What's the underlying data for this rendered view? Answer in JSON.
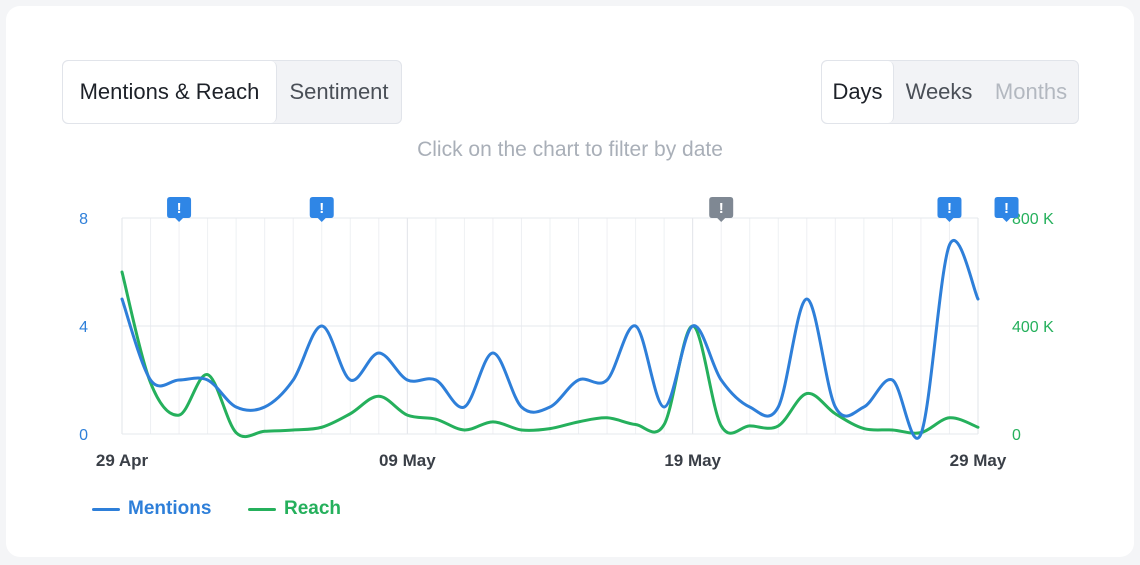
{
  "tabs": {
    "metric": [
      {
        "label": "Mentions & Reach",
        "active": true
      },
      {
        "label": "Sentiment",
        "active": false
      }
    ],
    "period": [
      {
        "label": "Days",
        "active": true
      },
      {
        "label": "Weeks",
        "active": false
      },
      {
        "label": "Months",
        "active": false,
        "disabled": true
      }
    ]
  },
  "hint": "Click on the chart to filter by date",
  "colors": {
    "mentions": "#2e7fd9",
    "reach": "#25b05c",
    "alert_blue": "#2f86e6",
    "alert_gray": "#7f8893"
  },
  "chart_data": {
    "type": "line",
    "x": [
      "2023-04-29",
      "2023-04-30",
      "2023-05-01",
      "2023-05-02",
      "2023-05-03",
      "2023-05-04",
      "2023-05-05",
      "2023-05-06",
      "2023-05-07",
      "2023-05-08",
      "2023-05-09",
      "2023-05-10",
      "2023-05-11",
      "2023-05-12",
      "2023-05-13",
      "2023-05-14",
      "2023-05-15",
      "2023-05-16",
      "2023-05-17",
      "2023-05-18",
      "2023-05-19",
      "2023-05-20",
      "2023-05-21",
      "2023-05-22",
      "2023-05-23",
      "2023-05-24",
      "2023-05-25",
      "2023-05-26",
      "2023-05-27",
      "2023-05-28",
      "2023-05-29"
    ],
    "x_tick_labels": [
      "29 Apr",
      "09 May",
      "19 May",
      "29 May"
    ],
    "series": [
      {
        "name": "Mentions",
        "axis": "left",
        "values": [
          5,
          2,
          2,
          2,
          1,
          1,
          2,
          4,
          2,
          3,
          2,
          2,
          1,
          3,
          1,
          1,
          2,
          2,
          4,
          1,
          4,
          2,
          1,
          1,
          5,
          1,
          1,
          2,
          0,
          7,
          5
        ]
      },
      {
        "name": "Reach",
        "axis": "right",
        "values": [
          600000,
          190000,
          70000,
          220000,
          5000,
          10000,
          15000,
          25000,
          75000,
          140000,
          70000,
          55000,
          15000,
          45000,
          15000,
          20000,
          45000,
          60000,
          35000,
          35000,
          400000,
          30000,
          30000,
          30000,
          150000,
          75000,
          20000,
          15000,
          5000,
          60000,
          25000
        ]
      }
    ],
    "y_left": {
      "ticks": [
        "0",
        "4",
        "8"
      ],
      "range": [
        0,
        8
      ]
    },
    "y_right": {
      "ticks": [
        "0",
        "400 K",
        "800 K"
      ],
      "range": [
        0,
        800000
      ]
    },
    "alert_markers": [
      {
        "date": "2023-05-01",
        "style": "blue",
        "symbol": "!"
      },
      {
        "date": "2023-05-06",
        "style": "blue",
        "symbol": "!"
      },
      {
        "date": "2023-05-20",
        "style": "gray",
        "symbol": "!"
      },
      {
        "date": "2023-05-28",
        "style": "blue",
        "symbol": "!"
      },
      {
        "date": "2023-05-30",
        "style": "blue",
        "symbol": "!"
      }
    ],
    "grid": true,
    "legend_position": "bottom-left"
  }
}
